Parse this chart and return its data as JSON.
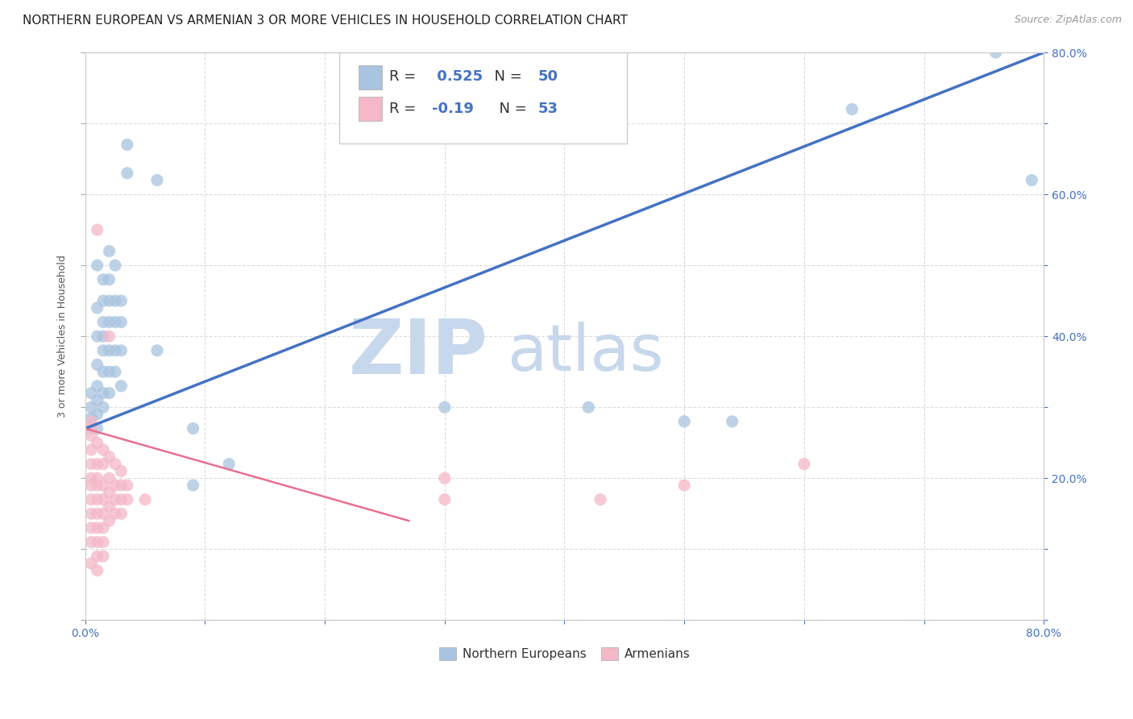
{
  "title": "NORTHERN EUROPEAN VS ARMENIAN 3 OR MORE VEHICLES IN HOUSEHOLD CORRELATION CHART",
  "source": "Source: ZipAtlas.com",
  "ylabel": "3 or more Vehicles in Household",
  "xlim": [
    0.0,
    0.8
  ],
  "ylim": [
    0.0,
    0.8
  ],
  "blue_color": "#A8C4E0",
  "pink_color": "#F4B8C8",
  "blue_R": 0.525,
  "blue_N": 50,
  "pink_R": -0.19,
  "pink_N": 53,
  "blue_scatter": [
    [
      0.005,
      0.27
    ],
    [
      0.005,
      0.285
    ],
    [
      0.005,
      0.3
    ],
    [
      0.005,
      0.32
    ],
    [
      0.01,
      0.27
    ],
    [
      0.01,
      0.29
    ],
    [
      0.01,
      0.31
    ],
    [
      0.01,
      0.33
    ],
    [
      0.01,
      0.36
    ],
    [
      0.01,
      0.4
    ],
    [
      0.01,
      0.44
    ],
    [
      0.01,
      0.5
    ],
    [
      0.015,
      0.3
    ],
    [
      0.015,
      0.32
    ],
    [
      0.015,
      0.35
    ],
    [
      0.015,
      0.38
    ],
    [
      0.015,
      0.4
    ],
    [
      0.015,
      0.42
    ],
    [
      0.015,
      0.45
    ],
    [
      0.015,
      0.48
    ],
    [
      0.02,
      0.32
    ],
    [
      0.02,
      0.35
    ],
    [
      0.02,
      0.38
    ],
    [
      0.02,
      0.42
    ],
    [
      0.02,
      0.45
    ],
    [
      0.02,
      0.48
    ],
    [
      0.02,
      0.52
    ],
    [
      0.025,
      0.35
    ],
    [
      0.025,
      0.38
    ],
    [
      0.025,
      0.42
    ],
    [
      0.025,
      0.45
    ],
    [
      0.025,
      0.5
    ],
    [
      0.03,
      0.33
    ],
    [
      0.03,
      0.38
    ],
    [
      0.03,
      0.42
    ],
    [
      0.03,
      0.45
    ],
    [
      0.035,
      0.63
    ],
    [
      0.035,
      0.67
    ],
    [
      0.06,
      0.38
    ],
    [
      0.06,
      0.62
    ],
    [
      0.09,
      0.27
    ],
    [
      0.09,
      0.19
    ],
    [
      0.12,
      0.22
    ],
    [
      0.3,
      0.3
    ],
    [
      0.42,
      0.3
    ],
    [
      0.5,
      0.28
    ],
    [
      0.54,
      0.28
    ],
    [
      0.64,
      0.72
    ],
    [
      0.76,
      0.8
    ],
    [
      0.79,
      0.62
    ]
  ],
  "pink_scatter": [
    [
      0.005,
      0.24
    ],
    [
      0.005,
      0.26
    ],
    [
      0.005,
      0.27
    ],
    [
      0.005,
      0.28
    ],
    [
      0.005,
      0.22
    ],
    [
      0.005,
      0.2
    ],
    [
      0.005,
      0.19
    ],
    [
      0.005,
      0.17
    ],
    [
      0.005,
      0.15
    ],
    [
      0.005,
      0.13
    ],
    [
      0.005,
      0.11
    ],
    [
      0.005,
      0.08
    ],
    [
      0.01,
      0.25
    ],
    [
      0.01,
      0.22
    ],
    [
      0.01,
      0.2
    ],
    [
      0.01,
      0.19
    ],
    [
      0.01,
      0.17
    ],
    [
      0.01,
      0.15
    ],
    [
      0.01,
      0.13
    ],
    [
      0.01,
      0.11
    ],
    [
      0.01,
      0.09
    ],
    [
      0.01,
      0.07
    ],
    [
      0.01,
      0.55
    ],
    [
      0.015,
      0.24
    ],
    [
      0.015,
      0.22
    ],
    [
      0.015,
      0.19
    ],
    [
      0.015,
      0.17
    ],
    [
      0.015,
      0.15
    ],
    [
      0.015,
      0.13
    ],
    [
      0.015,
      0.11
    ],
    [
      0.015,
      0.09
    ],
    [
      0.02,
      0.23
    ],
    [
      0.02,
      0.2
    ],
    [
      0.02,
      0.18
    ],
    [
      0.02,
      0.16
    ],
    [
      0.02,
      0.14
    ],
    [
      0.02,
      0.4
    ],
    [
      0.025,
      0.22
    ],
    [
      0.025,
      0.19
    ],
    [
      0.025,
      0.17
    ],
    [
      0.025,
      0.15
    ],
    [
      0.03,
      0.21
    ],
    [
      0.03,
      0.19
    ],
    [
      0.03,
      0.17
    ],
    [
      0.03,
      0.15
    ],
    [
      0.035,
      0.19
    ],
    [
      0.035,
      0.17
    ],
    [
      0.05,
      0.17
    ],
    [
      0.3,
      0.2
    ],
    [
      0.3,
      0.17
    ],
    [
      0.43,
      0.17
    ],
    [
      0.5,
      0.19
    ],
    [
      0.6,
      0.22
    ]
  ],
  "blue_line_color": "#4472C4",
  "pink_line_color": "#E87090",
  "watermark_zip": "ZIP",
  "watermark_atlas": "atlas",
  "watermark_color_zip": "#C8D8EC",
  "watermark_color_atlas": "#C8D8EC",
  "background_color": "#FFFFFF",
  "grid_color": "#DDDDDD",
  "title_fontsize": 11,
  "axis_label_fontsize": 9,
  "tick_fontsize": 10,
  "legend_fontsize": 13,
  "scatter_size": 120,
  "scatter_alpha": 0.75
}
